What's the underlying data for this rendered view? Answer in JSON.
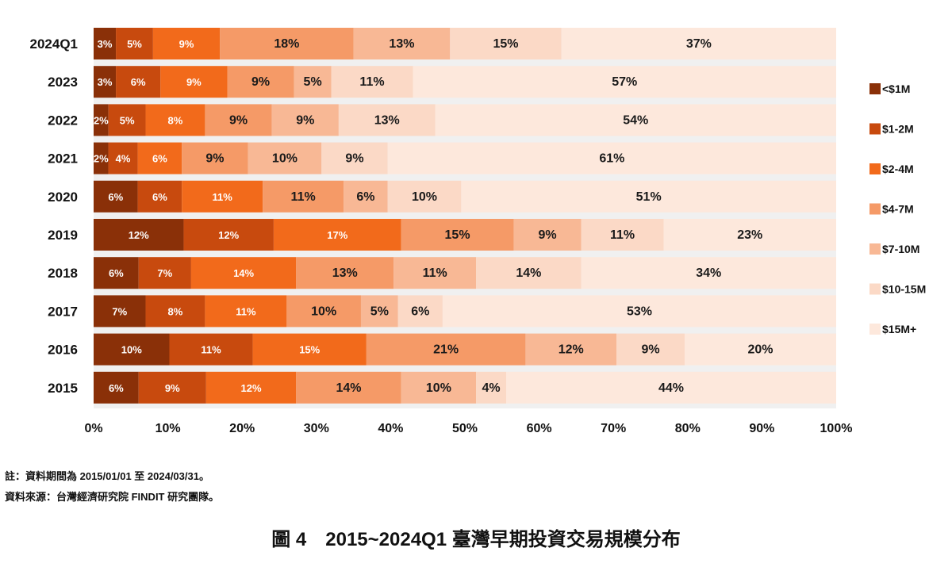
{
  "chart_data": {
    "type": "bar",
    "orientation": "horizontal",
    "stacked": true,
    "categories": [
      "2024Q1",
      "2023",
      "2022",
      "2021",
      "2020",
      "2019",
      "2018",
      "2017",
      "2016",
      "2015"
    ],
    "series": [
      {
        "name": "<$1M",
        "color": "#8a3008",
        "values": [
          3,
          3,
          2,
          2,
          6,
          12,
          6,
          7,
          10,
          6
        ]
      },
      {
        "name": "$1-2M",
        "color": "#c84a0e",
        "values": [
          5,
          6,
          5,
          4,
          6,
          12,
          7,
          8,
          11,
          9
        ]
      },
      {
        "name": "$2-4M",
        "color": "#f26a1b",
        "values": [
          9,
          9,
          8,
          6,
          11,
          17,
          14,
          11,
          15,
          12
        ]
      },
      {
        "name": "$4-7M",
        "color": "#f59a67",
        "values": [
          18,
          9,
          9,
          9,
          11,
          15,
          13,
          10,
          21,
          14
        ]
      },
      {
        "name": "$7-10M",
        "color": "#f8b895",
        "values": [
          13,
          5,
          9,
          10,
          6,
          9,
          11,
          5,
          12,
          10
        ]
      },
      {
        "name": "$10-15M",
        "color": "#fbd9c6",
        "values": [
          15,
          11,
          13,
          9,
          10,
          11,
          14,
          6,
          9,
          4
        ]
      },
      {
        "name": "$15M+",
        "color": "#fde8dc",
        "values": [
          37,
          57,
          54,
          61,
          51,
          23,
          34,
          53,
          20,
          44
        ]
      }
    ],
    "x_ticks": [
      "0%",
      "10%",
      "20%",
      "30%",
      "40%",
      "50%",
      "60%",
      "70%",
      "80%",
      "90%",
      "100%"
    ],
    "xlim": [
      0,
      100
    ],
    "legend_position": "right",
    "grid": false
  },
  "notes": {
    "period": "註：資料期間為 2015/01/01 至 2024/03/31。",
    "source": "資料來源：台灣經濟研究院 FINDIT 研究團隊。"
  },
  "figure_title": "圖 4　2015~2024Q1 臺灣早期投資交易規模分布"
}
